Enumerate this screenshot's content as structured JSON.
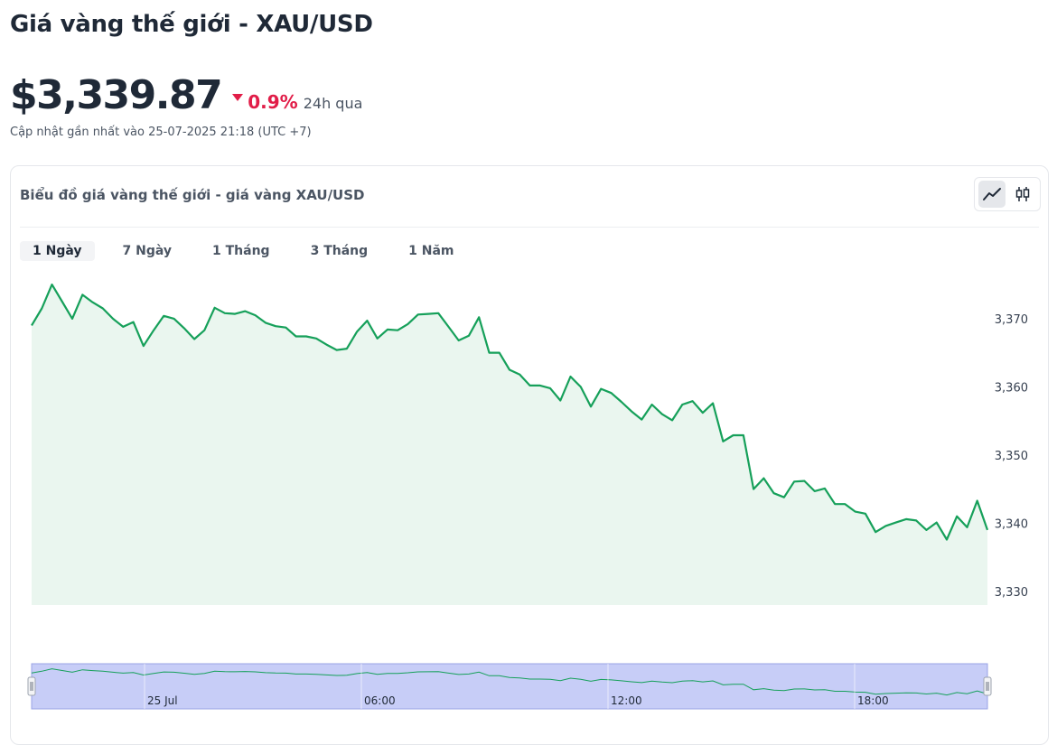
{
  "page": {
    "title": "Giá vàng thế giới - XAU/USD",
    "price": "$3,339.87",
    "change": "0.9%",
    "change_period": "24h qua",
    "updated": "Cập nhật gần nhất vào 25-07-2025 21:18 (UTC +7)"
  },
  "card": {
    "title": "Biểu đồ giá vàng thế giới - giá vàng XAU/USD",
    "view_toggle": [
      "line-chart-icon",
      "candlestick-icon"
    ],
    "active_view": "line-chart-icon"
  },
  "ranges": [
    "1 Ngày",
    "7 Ngày",
    "1 Tháng",
    "3 Tháng",
    "1 Năm"
  ],
  "active_range": "1 Ngày",
  "colors": {
    "line": "#16a05a",
    "fill": "#eaf6ef",
    "down": "#e11d48",
    "navigator": "#c7cdf7"
  },
  "chart_data": {
    "type": "area",
    "ylim": [
      3328,
      3377
    ],
    "yticks": [
      3370,
      3360,
      3350,
      3340,
      3330
    ],
    "ytick_labels": [
      "3,370",
      "3,360",
      "3,350",
      "3,340",
      "3,330"
    ],
    "navigator_labels": [
      "25 Jul",
      "06:00",
      "12:00",
      "18:00"
    ],
    "values": [
      3369.0,
      3371.5,
      3375.0,
      3372.5,
      3370.0,
      3373.5,
      3372.4,
      3371.5,
      3370.0,
      3368.8,
      3369.5,
      3366.0,
      3368.3,
      3370.4,
      3370.0,
      3368.6,
      3367.0,
      3368.3,
      3371.6,
      3370.8,
      3370.7,
      3371.1,
      3370.5,
      3369.4,
      3368.9,
      3368.7,
      3367.4,
      3367.4,
      3367.1,
      3366.2,
      3365.4,
      3365.6,
      3368.1,
      3369.7,
      3367.1,
      3368.4,
      3368.3,
      3369.2,
      3370.6,
      3370.7,
      3370.8,
      3368.8,
      3366.8,
      3367.5,
      3370.2,
      3365.0,
      3365.0,
      3362.5,
      3361.8,
      3360.2,
      3360.2,
      3359.8,
      3358.0,
      3361.5,
      3360.0,
      3357.1,
      3359.7,
      3359.1,
      3357.8,
      3356.4,
      3355.2,
      3357.4,
      3356.0,
      3355.1,
      3357.4,
      3357.9,
      3356.2,
      3357.6,
      3352.0,
      3352.9,
      3352.9,
      3345.0,
      3346.6,
      3344.4,
      3343.8,
      3346.1,
      3346.2,
      3344.7,
      3345.1,
      3342.8,
      3342.8,
      3341.7,
      3341.4,
      3338.7,
      3339.6,
      3340.1,
      3340.6,
      3340.4,
      3339.0,
      3340.1,
      3337.6,
      3341.0,
      3339.4,
      3343.3,
      3339.0
    ]
  }
}
